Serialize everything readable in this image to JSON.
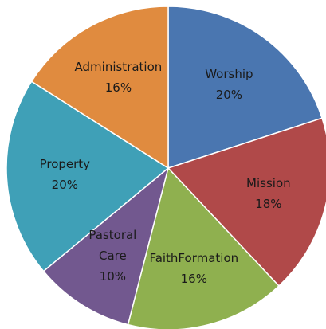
{
  "chart_data": {
    "type": "pie",
    "categories": [
      "Worship",
      "Mission",
      "FaithFormation",
      "Pastoral Care",
      "Property",
      "Administration"
    ],
    "values": [
      20,
      18,
      16,
      10,
      20,
      16
    ],
    "value_labels": [
      "20%",
      "18%",
      "16%",
      "10%",
      "20%",
      "16%"
    ],
    "colors": [
      "#4a76b0",
      "#b04949",
      "#8fb04f",
      "#72588f",
      "#3fa0b7",
      "#e08b3f"
    ]
  }
}
